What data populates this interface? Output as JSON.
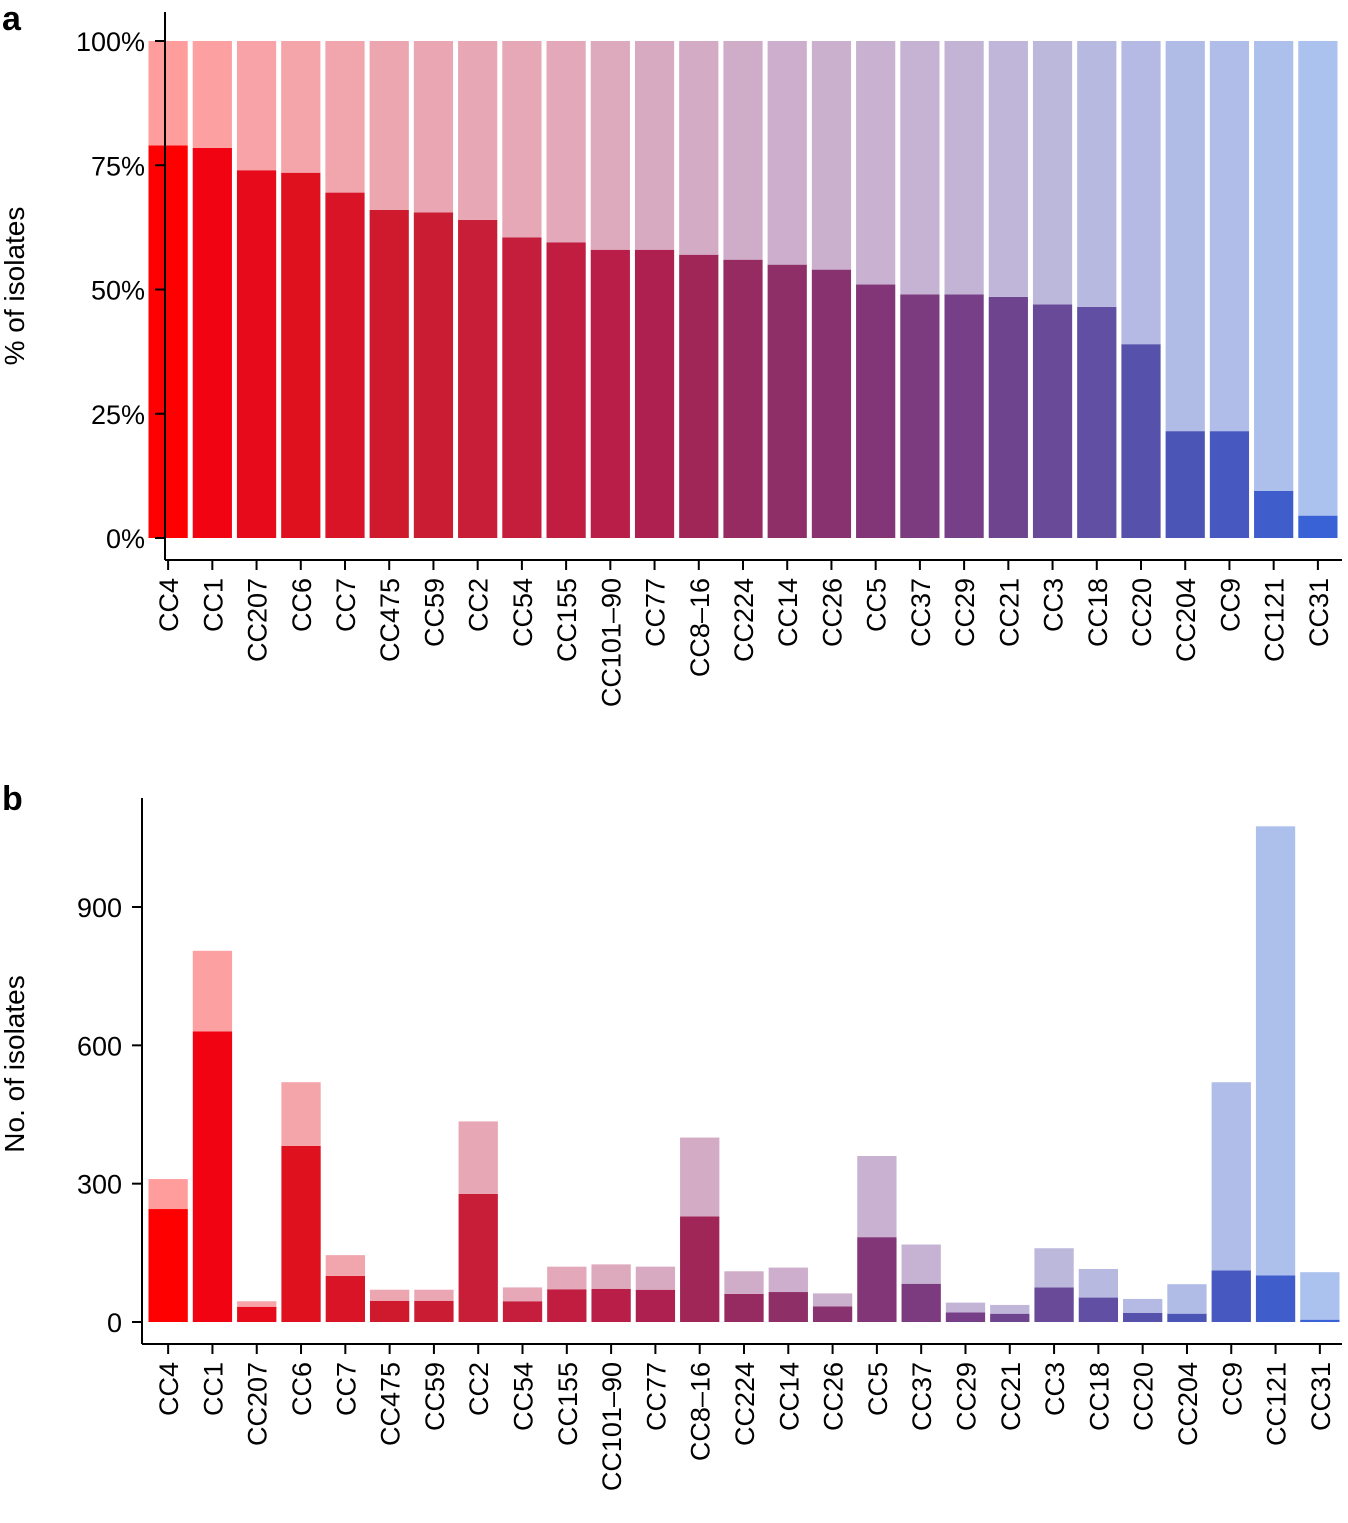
{
  "panels": {
    "a": {
      "letter": "a"
    },
    "b": {
      "letter": "b"
    }
  },
  "colors": {
    "dark": [
      "#ff0000",
      "#f20312",
      "#e60a1a",
      "#e0111f",
      "#d91426",
      "#cf1a2d",
      "#ca1c32",
      "#c81e38",
      "#c51e3c",
      "#c01d40",
      "#b81e48",
      "#ad2050",
      "#a12658",
      "#952b60",
      "#8e2f68",
      "#88326f",
      "#823577",
      "#7c3a7f",
      "#763f87",
      "#6f448f",
      "#684a98",
      "#604fa2",
      "#5652ab",
      "#4b55b5",
      "#4758c0",
      "#3f5dcb",
      "#3962d6"
    ],
    "light": [
      "#ff9c9c",
      "#fda0a2",
      "#f7a3a8",
      "#f4a5aa",
      "#f1a5ac",
      "#eca6b0",
      "#eaa6b2",
      "#e8a7b4",
      "#e6a7b6",
      "#e3a8b9",
      "#dda9bd",
      "#d8aac1",
      "#d3abc5",
      "#cfadc9",
      "#cdaecc",
      "#cbb0ce",
      "#c8b1d1",
      "#c6b3d3",
      "#c3b4d6",
      "#bfb6d9",
      "#bcb8dc",
      "#b8b9e0",
      "#b4bae3",
      "#b0bbe6",
      "#afbde8",
      "#adbfeb",
      "#abc1ee"
    ]
  },
  "chart_data": [
    {
      "id": "a",
      "type": "bar",
      "stacked": true,
      "title": "",
      "xlabel": "",
      "ylabel": "% of isolates",
      "ylim": [
        0,
        100
      ],
      "yticks": [
        0,
        25,
        50,
        75,
        100
      ],
      "ytick_labels": [
        "0%",
        "25%",
        "50%",
        "75%",
        "100%"
      ],
      "categories": [
        "CC4",
        "CC1",
        "CC207",
        "CC6",
        "CC7",
        "CC475",
        "CC59",
        "CC2",
        "CC54",
        "CC155",
        "CC101–90",
        "CC77",
        "CC8–16",
        "CC224",
        "CC14",
        "CC26",
        "CC5",
        "CC37",
        "CC29",
        "CC21",
        "CC3",
        "CC18",
        "CC20",
        "CC204",
        "CC9",
        "CC121",
        "CC31"
      ],
      "series": [
        {
          "name": "dark",
          "values": [
            79,
            78.5,
            74,
            73.5,
            69.5,
            66,
            65.5,
            64,
            60.5,
            59.5,
            58,
            58,
            57,
            56,
            55,
            54,
            51,
            49,
            49,
            48.5,
            47,
            46.5,
            39,
            21.5,
            21.5,
            9.5,
            4.5
          ]
        },
        {
          "name": "light",
          "values": [
            21,
            21.5,
            26,
            26.5,
            30.5,
            34,
            34.5,
            36,
            39.5,
            40.5,
            42,
            42,
            43,
            44,
            45,
            46,
            49,
            51,
            51,
            51.5,
            53,
            53.5,
            61,
            78.5,
            78.5,
            90.5,
            95.5
          ]
        }
      ]
    },
    {
      "id": "b",
      "type": "bar",
      "stacked": true,
      "title": "",
      "xlabel": "",
      "ylabel": "No. of isolates",
      "ylim": [
        0,
        1100
      ],
      "yticks": [
        0,
        300,
        600,
        900
      ],
      "ytick_labels": [
        "0",
        "300",
        "600",
        "900"
      ],
      "categories": [
        "CC4",
        "CC1",
        "CC207",
        "CC6",
        "CC7",
        "CC475",
        "CC59",
        "CC2",
        "CC54",
        "CC155",
        "CC101–90",
        "CC77",
        "CC8–16",
        "CC224",
        "CC14",
        "CC26",
        "CC5",
        "CC37",
        "CC29",
        "CC21",
        "CC3",
        "CC18",
        "CC20",
        "CC204",
        "CC9",
        "CC121",
        "CC31"
      ],
      "totals": [
        310,
        805,
        45,
        520,
        145,
        70,
        70,
        435,
        75,
        120,
        125,
        120,
        400,
        110,
        118,
        62,
        360,
        168,
        42,
        37,
        160,
        115,
        50,
        82,
        520,
        1075,
        108
      ],
      "series": [
        {
          "name": "dark",
          "values": [
            245,
            630,
            33,
            382,
            100,
            46,
            46,
            278,
            45,
            71,
            72,
            70,
            229,
            61,
            65,
            34,
            184,
            83,
            21,
            18,
            75,
            53,
            20,
            18,
            112,
            101,
            5
          ]
        },
        {
          "name": "light",
          "values": [
            65,
            175,
            12,
            138,
            45,
            24,
            24,
            157,
            30,
            49,
            53,
            50,
            171,
            49,
            53,
            28,
            176,
            85,
            21,
            19,
            85,
            62,
            30,
            64,
            408,
            974,
            103
          ]
        }
      ]
    }
  ]
}
